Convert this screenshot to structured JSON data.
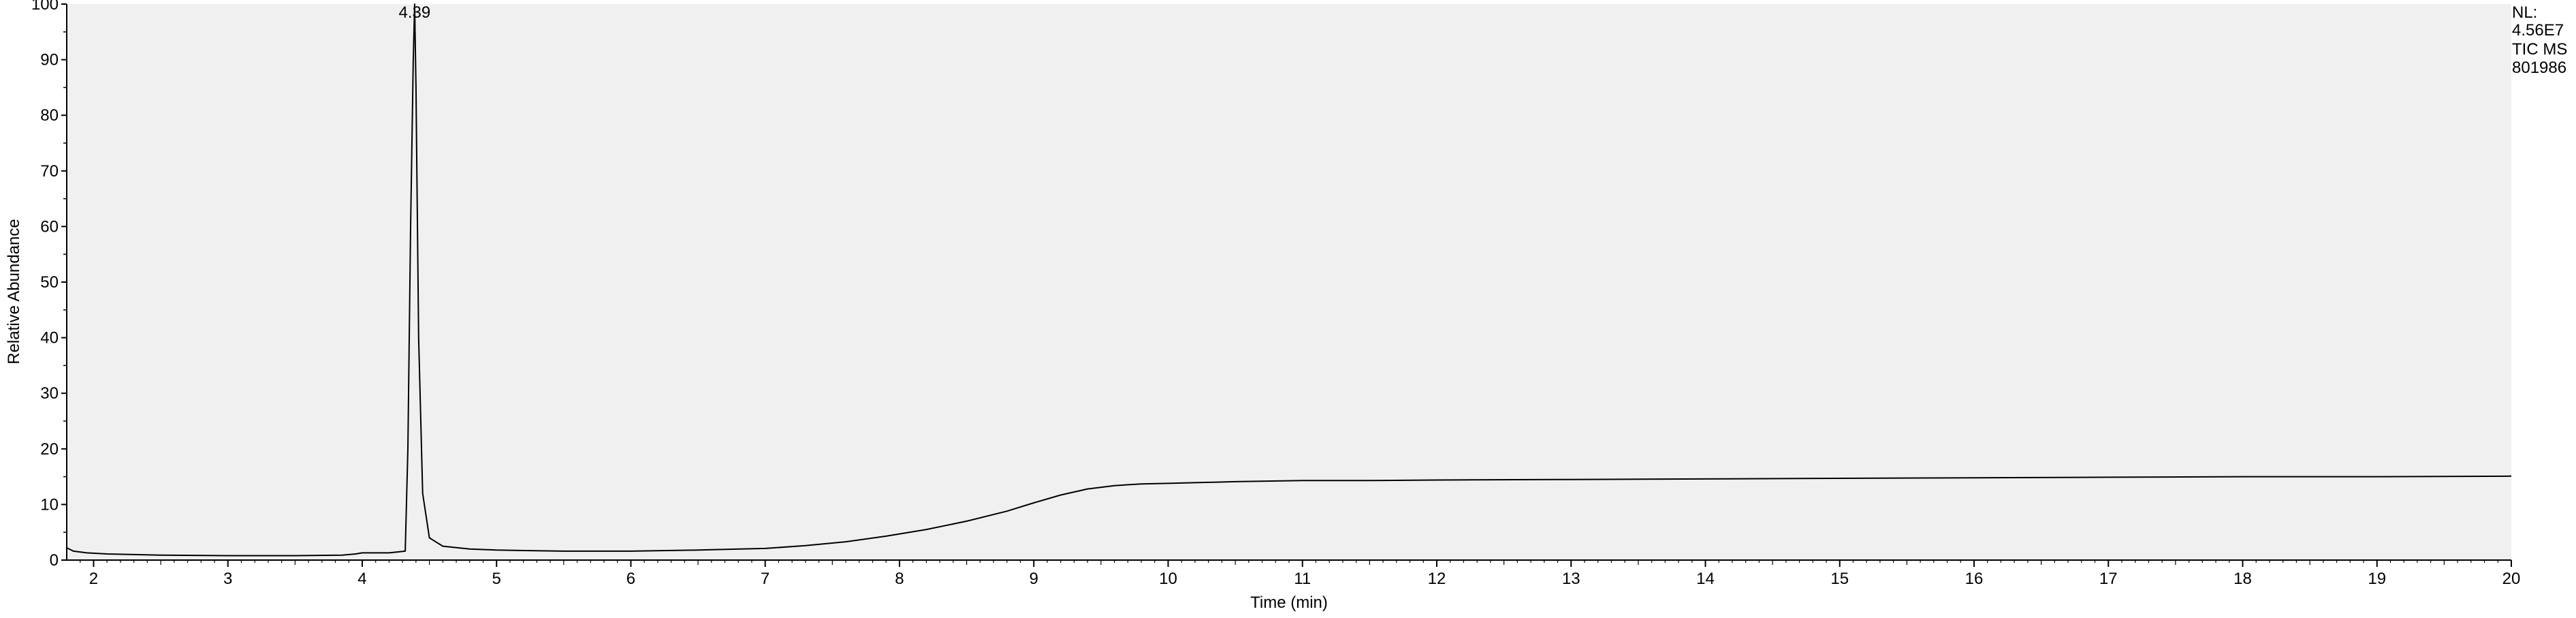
{
  "chart_data": {
    "type": "line",
    "title": "",
    "xlabel": "Time (min)",
    "ylabel": "Relative Abundance",
    "xlim": [
      1.8,
      20
    ],
    "ylim": [
      0,
      100
    ],
    "x_ticks": [
      2,
      3,
      4,
      5,
      6,
      7,
      8,
      9,
      10,
      11,
      12,
      13,
      14,
      15,
      16,
      17,
      18,
      19,
      20
    ],
    "y_ticks": [
      0,
      10,
      20,
      30,
      40,
      50,
      60,
      70,
      80,
      90,
      100
    ],
    "grid": false,
    "legend": "none",
    "colors": {
      "plot_bg": "#f0f0f0",
      "line": "#000000"
    },
    "series": [
      {
        "x": [
          1.8,
          1.85,
          1.95,
          2.1,
          2.5,
          3.0,
          3.5,
          3.85,
          3.95,
          4.0,
          4.1,
          4.2,
          4.32,
          4.34,
          4.36,
          4.38,
          4.39,
          4.4,
          4.42,
          4.45,
          4.5,
          4.6,
          4.8,
          5.0,
          5.5,
          6.0,
          6.5,
          7.0,
          7.3,
          7.6,
          7.9,
          8.2,
          8.5,
          8.8,
          9.0,
          9.2,
          9.4,
          9.6,
          9.8,
          10.0,
          10.5,
          11.0,
          11.5,
          12.0,
          13.0,
          14.0,
          15.0,
          16.0,
          17.0,
          18.0,
          19.0,
          20.0
        ],
        "y": [
          2.2,
          1.6,
          1.3,
          1.1,
          0.9,
          0.8,
          0.8,
          0.9,
          1.1,
          1.3,
          1.3,
          1.3,
          1.6,
          20,
          60,
          90,
          100,
          85,
          40,
          12,
          4,
          2.5,
          2.0,
          1.8,
          1.6,
          1.6,
          1.8,
          2.1,
          2.6,
          3.3,
          4.3,
          5.5,
          7.0,
          8.8,
          10.3,
          11.7,
          12.8,
          13.4,
          13.7,
          13.8,
          14.1,
          14.3,
          14.3,
          14.4,
          14.5,
          14.6,
          14.7,
          14.8,
          14.9,
          15.0,
          15.0,
          15.1
        ]
      }
    ],
    "annotations": [
      {
        "x": 4.39,
        "y": 100,
        "text": "4.39"
      }
    ]
  },
  "side_info": {
    "nl_label": "NL:",
    "nl_value": "4.56E7",
    "scan_filter": "TIC  MS",
    "sample_id": "801986"
  }
}
